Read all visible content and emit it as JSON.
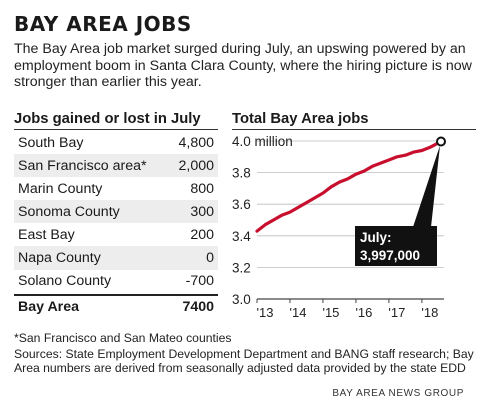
{
  "title": "BAY AREA JOBS",
  "intro": "The Bay Area job market surged during July, an upswing powered by an employment boom in Santa Clara County, where the hiring picture is now stronger than earlier this year.",
  "table": {
    "title": "Jobs gained or lost in July",
    "rows": [
      {
        "label": "South Bay",
        "value": "4,800"
      },
      {
        "label": "San Francisco area*",
        "value": "2,000"
      },
      {
        "label": "Marin County",
        "value": "800"
      },
      {
        "label": "Sonoma County",
        "value": "300"
      },
      {
        "label": "East Bay",
        "value": "200"
      },
      {
        "label": "Napa County",
        "value": "0"
      },
      {
        "label": "Solano County",
        "value": "-700"
      }
    ],
    "total": {
      "label": "Bay Area",
      "value": "7400"
    }
  },
  "footnote": "*San Francisco and San Mateo counties",
  "sources": "Sources: State Employment Development Department and BANG staff research; Bay Area numbers are derived from seasonally adjusted data provided by the state EDD",
  "credit": "BAY AREA NEWS GROUP",
  "colors": {
    "line": "#c8102e",
    "callout_bg": "#111111",
    "callout_text": "#ffffff",
    "grid": "#bdbdbd",
    "row_alt": "#ededed"
  },
  "chart_data": {
    "type": "line",
    "title": "Total Bay Area jobs",
    "ylim": [
      3.0,
      4.0
    ],
    "yticks": [
      3.0,
      3.2,
      3.4,
      3.6,
      3.8,
      4.0
    ],
    "ytick_labels": [
      "3.0",
      "3.2",
      "3.4",
      "3.6",
      "3.8",
      "4.0 million"
    ],
    "xlim": [
      2013.0,
      2018.58
    ],
    "xticks": [
      2013,
      2014,
      2015,
      2016,
      2017,
      2018
    ],
    "xtick_labels": [
      "'13",
      "'14",
      "'15",
      "'16",
      "'17",
      "'18"
    ],
    "grid": true,
    "series": [
      {
        "x": [
          2013.0,
          2013.25,
          2013.5,
          2013.75,
          2014.0,
          2014.25,
          2014.5,
          2014.75,
          2015.0,
          2015.25,
          2015.5,
          2015.75,
          2016.0,
          2016.25,
          2016.5,
          2016.75,
          2017.0,
          2017.25,
          2017.5,
          2017.75,
          2018.0,
          2018.25,
          2018.58
        ],
        "y": [
          3.43,
          3.47,
          3.5,
          3.53,
          3.55,
          3.58,
          3.61,
          3.64,
          3.67,
          3.71,
          3.74,
          3.76,
          3.79,
          3.81,
          3.84,
          3.86,
          3.88,
          3.9,
          3.91,
          3.93,
          3.94,
          3.96,
          3.997
        ]
      }
    ],
    "annotation": {
      "label": "July:",
      "value": "3,997,000",
      "x": 2018.58,
      "y": 3.997
    }
  }
}
